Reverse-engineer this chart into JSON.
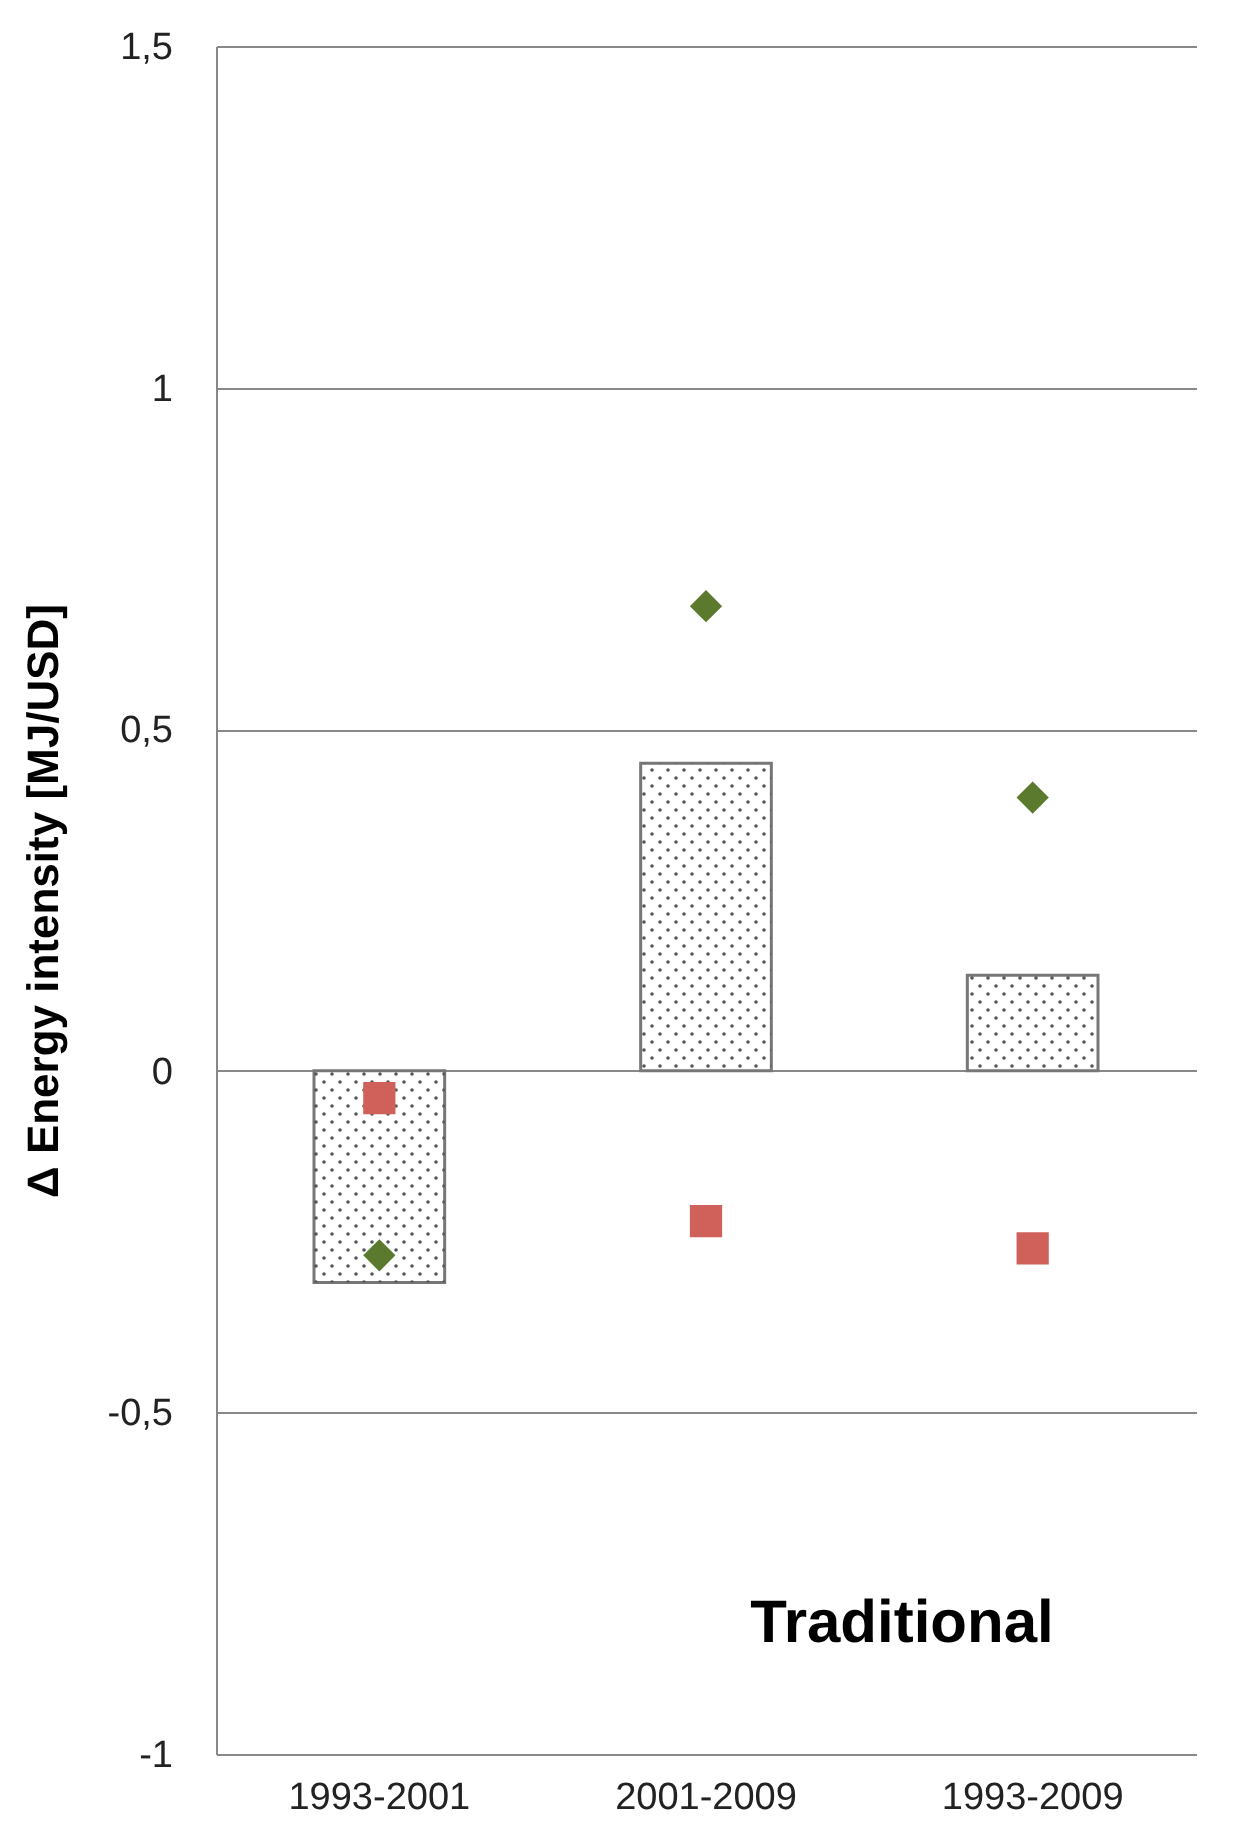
{
  "chart_data": {
    "type": "bar",
    "ylabel": "Δ  Energy intensity [MJ/USD]",
    "categories": [
      "1993-2001",
      "2001-2009",
      "1993-2009"
    ],
    "series": [
      {
        "type": "bar",
        "color": "#ffffff",
        "values": [
          -0.31,
          0.45,
          0.14
        ]
      },
      {
        "type": "scatter",
        "marker": "diamond",
        "color": "#5b7a2e",
        "values": [
          -0.27,
          0.68,
          0.4
        ]
      },
      {
        "type": "scatter",
        "marker": "square",
        "color": "#d0605a",
        "values": [
          -0.04,
          -0.22,
          -0.26
        ]
      }
    ],
    "ylim": [
      -1,
      1.5
    ],
    "yticks": [
      {
        "value": 1.5,
        "label": "1,5"
      },
      1,
      {
        "value": 0.5,
        "label": "0,5"
      },
      0,
      {
        "value": -0.5,
        "label": "-0,5"
      },
      -1
    ],
    "grid": "y",
    "annotations": [
      "Traditional"
    ]
  }
}
